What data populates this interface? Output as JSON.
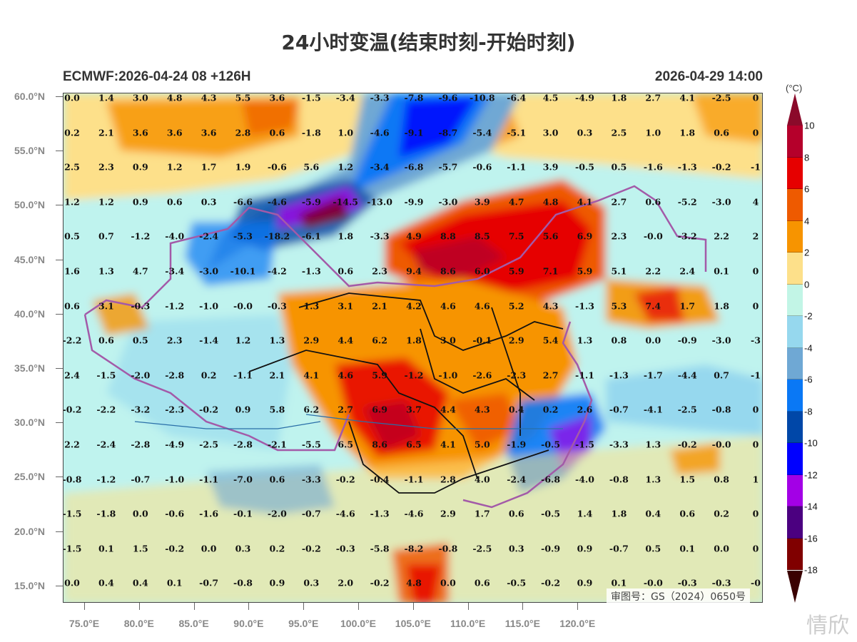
{
  "header": {
    "title": "24小时变温(结束时刻-开始时刻)",
    "model_run": "ECMWF:2026-04-24 08 +126H",
    "valid_time": "2026-04-29 14:00"
  },
  "map": {
    "approval_number": "审图号：GS（2024）0650号",
    "watermark": "情欣"
  },
  "colorbar": {
    "unit": "(°C)",
    "labels": [
      "10",
      "8",
      "6",
      "4",
      "2",
      "0",
      "-2",
      "-4",
      "-6",
      "-8",
      "-10",
      "-12",
      "-14",
      "-16",
      "-18"
    ],
    "colors": [
      "#b5002b",
      "#e60000",
      "#ee5a00",
      "#f79400",
      "#fde08a",
      "#c2f5e6",
      "#96d8ee",
      "#6fa8d4",
      "#0a78f5",
      "#0047a8",
      "#0000ff",
      "#a300e6",
      "#4b0080",
      "#800000"
    ],
    "top_arrow_color": "#8b0a2a",
    "bottom_arrow_color": "#3a0000"
  },
  "chart_data": {
    "type": "heatmap",
    "title": "24小时变温(结束时刻-开始时刻)",
    "subtitle_left": "ECMWF:2026-04-24 08 +126H",
    "subtitle_right": "2026-04-29 14:00",
    "xlabel": "",
    "ylabel": "",
    "x_ticks": [
      "75.0°E",
      "80.0°E",
      "85.0°E",
      "90.0°E",
      "95.0°E",
      "100.0°E",
      "105.0°E",
      "110.0°E",
      "115.0°E",
      "120.0°E"
    ],
    "y_ticks": [
      "60.0°N",
      "55.0°N",
      "50.0°N",
      "45.0°N",
      "40.0°N",
      "35.0°N",
      "30.0°N",
      "25.0°N",
      "20.0°N",
      "15.0°N"
    ],
    "colorbar_levels": [
      10,
      8,
      6,
      4,
      2,
      0,
      -2,
      -4,
      -6,
      -8,
      -10,
      -12,
      -14,
      -16,
      -18
    ],
    "unit": "°C",
    "grid_values": [
      [
        "0.0",
        "1.4",
        "3.0",
        "4.8",
        "4.3",
        "5.5",
        "3.6",
        "-1.5",
        "-3.4",
        "-3.3",
        "-7.8",
        "-9.6",
        "-10.8",
        "-6.4",
        "4.5",
        "-4.9",
        "1.8",
        "2.7",
        "4.1",
        "-2.5",
        "0"
      ],
      [
        "0.2",
        "2.1",
        "3.6",
        "3.6",
        "3.6",
        "2.8",
        "0.6",
        "-1.8",
        "1.0",
        "-4.6",
        "-9.1",
        "-8.7",
        "-5.4",
        "-5.1",
        "3.0",
        "0.3",
        "2.5",
        "1.0",
        "1.8",
        "0.6",
        "0"
      ],
      [
        "2.5",
        "2.3",
        "0.9",
        "1.2",
        "1.7",
        "1.9",
        "-0.6",
        "5.6",
        "1.2",
        "-3.4",
        "-6.8",
        "-5.7",
        "-0.6",
        "-1.1",
        "3.9",
        "-0.5",
        "0.5",
        "-1.6",
        "-1.3",
        "-0.2",
        "-1"
      ],
      [
        "1.2",
        "1.2",
        "0.9",
        "0.6",
        "0.3",
        "-6.6",
        "-4.6",
        "-5.9",
        "-14.5",
        "-13.0",
        "-9.9",
        "-3.0",
        "3.9",
        "4.7",
        "4.8",
        "4.1",
        "2.7",
        "0.6",
        "-5.2",
        "-3.0",
        "4"
      ],
      [
        "0.5",
        "0.7",
        "-1.2",
        "-4.0",
        "-2.4",
        "-5.3",
        "-18.2",
        "-6.1",
        "1.8",
        "-3.3",
        "4.9",
        "8.8",
        "8.5",
        "7.5",
        "5.6",
        "6.9",
        "2.3",
        "-0.0",
        "-3.2",
        "2.2",
        "2"
      ],
      [
        "1.6",
        "1.3",
        "4.7",
        "-3.4",
        "-3.0",
        "-10.1",
        "-4.2",
        "-1.3",
        "0.6",
        "2.3",
        "9.4",
        "8.6",
        "6.0",
        "5.9",
        "7.1",
        "5.9",
        "5.1",
        "2.2",
        "2.4",
        "0.1",
        "0"
      ],
      [
        "0.6",
        "3.1",
        "-0.3",
        "-1.2",
        "-1.0",
        "-0.0",
        "-0.3",
        "1.3",
        "3.1",
        "2.1",
        "4.2",
        "4.6",
        "4.6",
        "5.2",
        "4.3",
        "-1.3",
        "5.3",
        "7.4",
        "1.7",
        "1.8",
        "0"
      ],
      [
        "-2.2",
        "0.6",
        "0.5",
        "2.3",
        "-1.4",
        "1.2",
        "1.3",
        "2.9",
        "4.4",
        "6.2",
        "1.8",
        "3.0",
        "-0.1",
        "2.9",
        "5.4",
        "1.3",
        "0.8",
        "0.0",
        "-0.9",
        "-3.0",
        "-3"
      ],
      [
        "2.4",
        "-1.5",
        "-2.0",
        "-2.8",
        "0.2",
        "-1.1",
        "2.1",
        "4.1",
        "4.6",
        "5.9",
        "-1.2",
        "-1.0",
        "-2.6",
        "-2.3",
        "2.7",
        "-1.1",
        "-1.3",
        "-1.7",
        "-4.4",
        "0.7",
        "-1"
      ],
      [
        "-0.2",
        "-2.2",
        "-3.2",
        "-2.3",
        "-0.2",
        "0.9",
        "5.8",
        "6.2",
        "2.7",
        "6.9",
        "3.7",
        "4.4",
        "4.3",
        "0.4",
        "0.2",
        "2.6",
        "-0.7",
        "-4.1",
        "-2.5",
        "-0.8",
        "0"
      ],
      [
        "2.2",
        "-2.4",
        "-2.8",
        "-4.9",
        "-2.5",
        "-2.8",
        "-2.1",
        "-5.5",
        "6.5",
        "8.6",
        "6.5",
        "4.1",
        "5.0",
        "-1.9",
        "-0.5",
        "-1.5",
        "-3.3",
        "1.3",
        "-0.2",
        "-0.0",
        "0"
      ],
      [
        "-0.8",
        "-1.2",
        "-0.7",
        "-1.0",
        "-1.1",
        "-7.0",
        "0.6",
        "-3.3",
        "-0.2",
        "-0.4",
        "-1.1",
        "2.8",
        "4.0",
        "-2.4",
        "-6.8",
        "-4.0",
        "-0.8",
        "1.3",
        "1.5",
        "0.8",
        "1"
      ],
      [
        "-1.5",
        "-1.8",
        "0.0",
        "-0.6",
        "-1.6",
        "-0.1",
        "-2.0",
        "-0.7",
        "-4.6",
        "-1.3",
        "-4.6",
        "2.9",
        "1.7",
        "0.6",
        "-0.5",
        "1.4",
        "1.8",
        "0.4",
        "0.6",
        "0.2",
        "0"
      ],
      [
        "-1.5",
        "0.1",
        "1.5",
        "-0.2",
        "0.0",
        "0.3",
        "0.2",
        "-0.2",
        "-0.3",
        "-5.8",
        "-8.2",
        "-0.8",
        "-2.5",
        "0.3",
        "-0.9",
        "0.9",
        "-0.7",
        "0.5",
        "0.1",
        "0.0",
        "0"
      ],
      [
        "0.0",
        "0.4",
        "0.4",
        "0.1",
        "-0.7",
        "-0.8",
        "0.9",
        "0.3",
        "2.0",
        "-0.2",
        "4.8",
        "0.0",
        "0.6",
        "-0.5",
        "-0.2",
        "0.9",
        "0.1",
        "-0.0",
        "-0.3",
        "-0.3",
        "-0"
      ]
    ]
  }
}
